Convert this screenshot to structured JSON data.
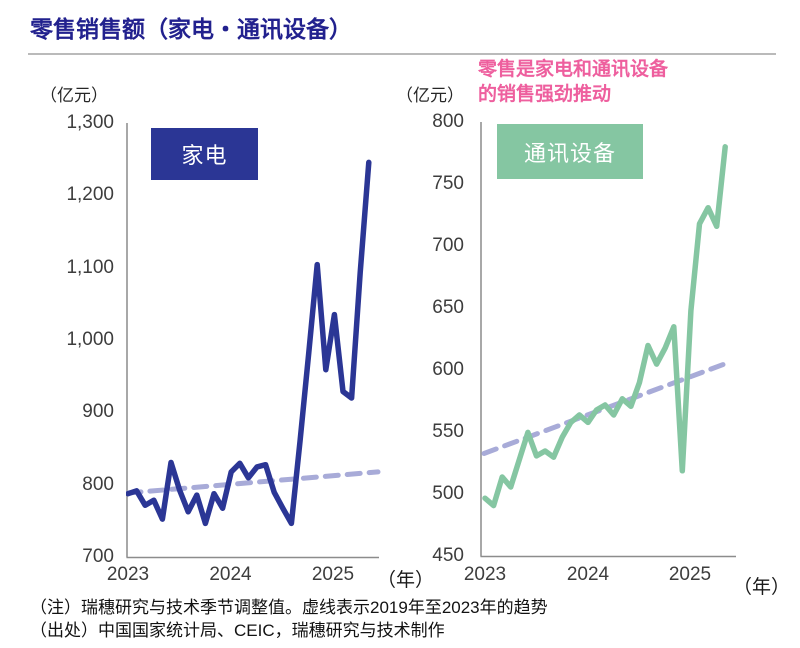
{
  "title": "零售销售额（家电・通讯设备）",
  "annotation": {
    "line1": "零售是家电和通讯设备",
    "line2": "的销售强劲推动",
    "color": "#ee5f9e"
  },
  "colors": {
    "title_navy": "#22218e",
    "appliances_line": "#2b3695",
    "communications_line": "#85c6a2",
    "trend_dashed": "#a8abd8",
    "annotation_pink": "#ee5f9e",
    "axis_gray": "#8c8c8c",
    "tick_text": "#3d3d3d"
  },
  "footer": {
    "note": "（注）瑞穗研究与技术季节调整值。虚线表示2019年至2023年的趋势",
    "source": "（出处）中国国家统计局、CEIC，瑞穗研究与技术制作"
  },
  "chart_data": [
    {
      "type": "line",
      "title": "家电",
      "unit_label": "（亿元）",
      "xlabel": "（年）",
      "x_axis_suffix": "（年）",
      "ylim": [
        700,
        1300
      ],
      "y_ticks": [
        "1,300",
        "1,200",
        "1,100",
        "1,000",
        "900",
        "800",
        "700"
      ],
      "x_tick_labels": [
        "2023",
        "2024",
        "2025"
      ],
      "months": [
        "2023-01",
        "2023-02",
        "2023-03",
        "2023-04",
        "2023-05",
        "2023-06",
        "2023-07",
        "2023-08",
        "2023-09",
        "2023-10",
        "2023-11",
        "2023-12",
        "2024-01",
        "2024-02",
        "2024-03",
        "2024-04",
        "2024-05",
        "2024-06",
        "2024-07",
        "2024-08",
        "2024-09",
        "2024-10",
        "2024-11",
        "2024-12",
        "2025-01",
        "2025-02",
        "2025-03",
        "2025-04",
        "2025-05"
      ],
      "series": [
        {
          "name": "家电零售销售额（季节调整值）",
          "style": "solid",
          "color": "#2b3695",
          "values": [
            788,
            792,
            772,
            779,
            753,
            831,
            793,
            763,
            786,
            747,
            788,
            768,
            818,
            830,
            810,
            825,
            828,
            790,
            768,
            747,
            860,
            980,
            1104,
            959,
            1035,
            929,
            920,
            1093,
            1245
          ]
        },
        {
          "name": "2019年至2023年的趋势",
          "style": "dashed",
          "color": "#a8abd8",
          "values": [
            789,
            818
          ]
        }
      ]
    },
    {
      "type": "line",
      "title": "通讯设备",
      "unit_label": "（亿元）",
      "xlabel": "（年）",
      "x_axis_suffix": "（年）",
      "ylim": [
        450,
        800
      ],
      "y_ticks": [
        "800",
        "750",
        "700",
        "650",
        "600",
        "550",
        "500",
        "450"
      ],
      "x_tick_labels": [
        "2023",
        "2024",
        "2025"
      ],
      "months": [
        "2023-01",
        "2023-02",
        "2023-03",
        "2023-04",
        "2023-05",
        "2023-06",
        "2023-07",
        "2023-08",
        "2023-09",
        "2023-10",
        "2023-11",
        "2023-12",
        "2024-01",
        "2024-02",
        "2024-03",
        "2024-04",
        "2024-05",
        "2024-06",
        "2024-07",
        "2024-08",
        "2024-09",
        "2024-10",
        "2024-11",
        "2024-12",
        "2025-01",
        "2025-02",
        "2025-03",
        "2025-04",
        "2025-05"
      ],
      "series": [
        {
          "name": "通讯设备零售销售额（季节调整值）",
          "style": "solid",
          "color": "#85c6a2",
          "values": [
            497,
            491,
            514,
            506,
            528,
            550,
            531,
            535,
            530,
            546,
            558,
            564,
            558,
            568,
            572,
            564,
            577,
            571,
            590,
            620,
            605,
            618,
            635,
            519,
            648,
            718,
            731,
            716,
            780
          ]
        },
        {
          "name": "2019年至2023年的趋势",
          "style": "dashed",
          "color": "#a8abd8",
          "values": [
            533,
            607
          ]
        }
      ]
    }
  ]
}
